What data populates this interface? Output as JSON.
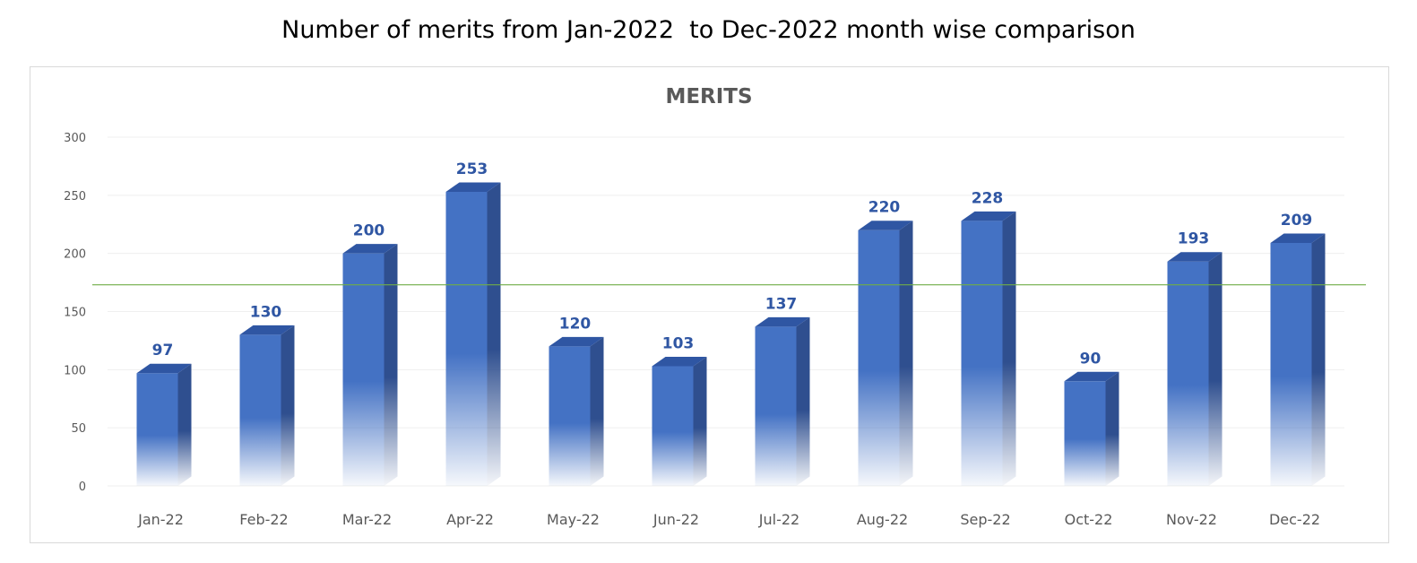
{
  "page": {
    "title": "Number of merits from Jan-2022  to Dec-2022 month wise comparison"
  },
  "chart_data": {
    "type": "bar",
    "title": "MERITS",
    "categories": [
      "Jan-22",
      "Feb-22",
      "Mar-22",
      "Apr-22",
      "May-22",
      "Jun-22",
      "Jul-22",
      "Aug-22",
      "Sep-22",
      "Oct-22",
      "Nov-22",
      "Dec-22"
    ],
    "series": [
      {
        "values": [
          97,
          130,
          200,
          253,
          120,
          103,
          137,
          220,
          228,
          90,
          193,
          209
        ]
      }
    ],
    "reference_line": {
      "value": 173,
      "color": "#70ad47"
    },
    "ylim": [
      0,
      300
    ],
    "yticks": [
      0,
      50,
      100,
      150,
      200,
      250,
      300
    ],
    "xlabel": "",
    "ylabel": "",
    "grid": true,
    "legend": "none",
    "data_labels": true,
    "colors": {
      "bar": "#4472c4",
      "bar_side": "#2f4f8f",
      "bar_top": "#2f56a3",
      "label": "#2f56a3",
      "grid": "#efefef"
    }
  }
}
